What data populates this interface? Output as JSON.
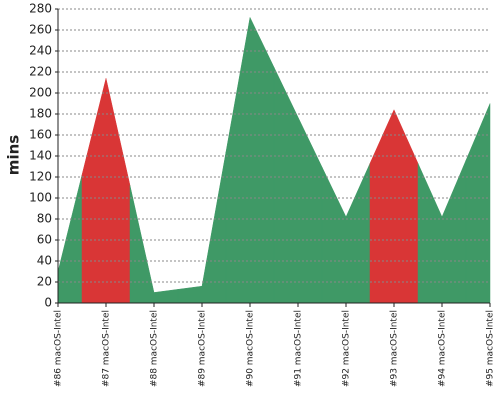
{
  "chart_data": {
    "type": "area",
    "y_label": "mins",
    "categories": [
      "#86 macOS-Intel",
      "#87 macOS-Intel",
      "#88 macOS-Intel",
      "#89 macOS-Intel",
      "#90 macOS-Intel",
      "#91 macOS-Intel",
      "#92 macOS-Intel",
      "#93 macOS-Intel",
      "#94 macOS-Intel",
      "#95 macOS-Intel"
    ],
    "values": [
      30,
      214,
      10,
      16,
      272,
      177,
      82,
      184,
      82,
      190
    ],
    "colors": [
      "#3f9966",
      "#d93636",
      "#3f9966",
      "#3f9966",
      "#3f9966",
      "#3f9966",
      "#3f9966",
      "#d93636",
      "#3f9966",
      "#3f9966"
    ],
    "ylim": [
      0,
      280
    ],
    "yticks": [
      0,
      20,
      40,
      60,
      80,
      100,
      120,
      140,
      160,
      180,
      200,
      220,
      240,
      260,
      280
    ],
    "grid": true
  }
}
